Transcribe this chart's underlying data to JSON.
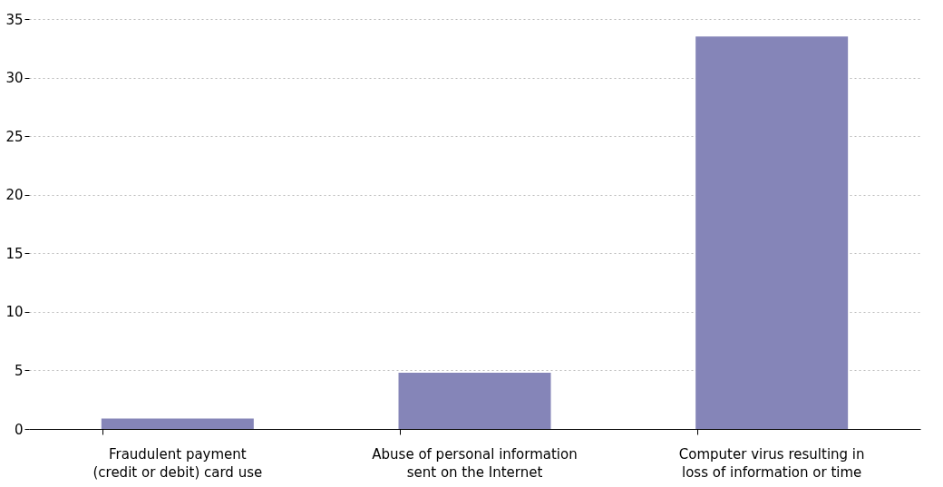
{
  "chart_data": {
    "type": "bar",
    "categories": [
      "Fraudulent payment\n(credit or debit) card use",
      "Abuse of personal information\nsent on the Internet",
      "Computer virus resulting in\nloss of information or time"
    ],
    "values": [
      0.9,
      4.8,
      33.5
    ],
    "color": "#8585b8",
    "ylim": [
      0,
      35
    ],
    "yticks": [
      0,
      5,
      10,
      15,
      20,
      25,
      30,
      35
    ],
    "grid": "y"
  }
}
